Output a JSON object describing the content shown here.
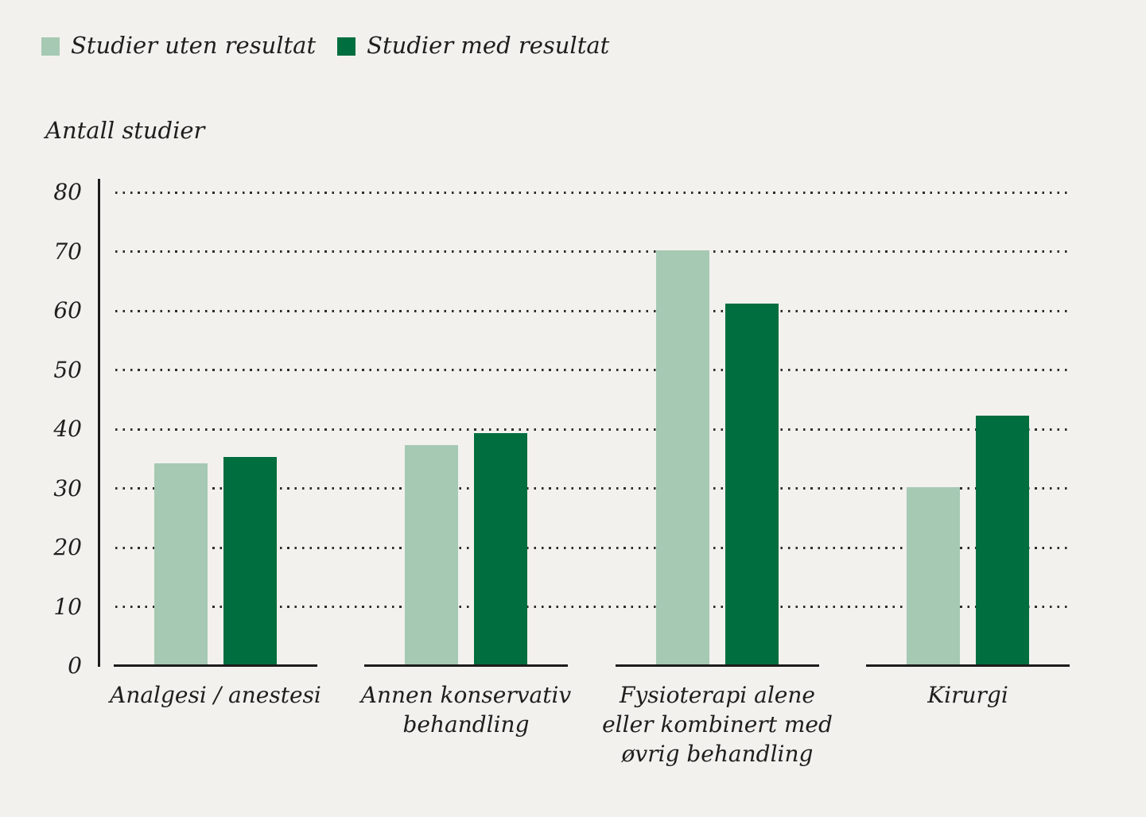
{
  "legend": {
    "items": [
      {
        "label": "Studier uten resultat",
        "color": "#a6c9b4"
      },
      {
        "label": "Studier med resultat",
        "color": "#006e3e"
      }
    ]
  },
  "axis_title": "Antall studier",
  "colors": {
    "background": "#f2f1ee",
    "series_light": "#a6c9b4",
    "series_dark": "#006e3e",
    "ink": "#1d1d1b",
    "grid_dots": "#2e2d2a"
  },
  "chart_data": {
    "type": "bar",
    "title": "",
    "ylabel": "Antall studier",
    "xlabel": "",
    "ylim": [
      0,
      80
    ],
    "y_ticks": [
      0,
      10,
      20,
      30,
      40,
      50,
      60,
      70,
      80
    ],
    "grid": "horizontal-dotted",
    "legend_position": "top-left",
    "categories": [
      "Analgesi / anestesi",
      "Annen konservativ behandling",
      "Fysioterapi alene eller kombinert med øvrig behandling",
      "Kirurgi"
    ],
    "category_lines": [
      [
        "Analgesi / anestesi"
      ],
      [
        "Annen konservativ",
        "behandling"
      ],
      [
        "Fysioterapi alene",
        "eller kombinert med",
        "øvrig behandling"
      ],
      [
        "Kirurgi"
      ]
    ],
    "series": [
      {
        "name": "Studier uten resultat",
        "color": "#a6c9b4",
        "values": [
          34,
          37,
          70,
          30
        ]
      },
      {
        "name": "Studier med resultat",
        "color": "#006e3e",
        "values": [
          35,
          39,
          61,
          42
        ]
      }
    ]
  }
}
